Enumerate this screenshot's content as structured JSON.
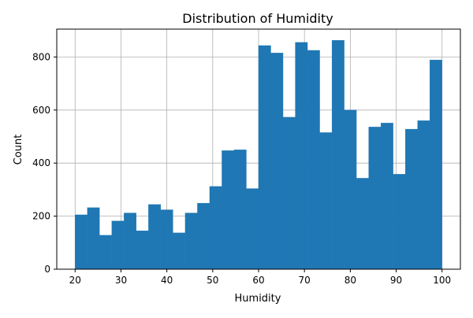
{
  "chart_data": {
    "type": "bar",
    "title": "Distribution of Humidity",
    "xlabel": "Humidity",
    "ylabel": "Count",
    "xlim": [
      16,
      104
    ],
    "ylim": [
      0,
      905
    ],
    "grid": true,
    "bar_color": "#1f77b4",
    "grid_color": "#b0b0b0",
    "x_ticks": [
      20,
      30,
      40,
      50,
      60,
      70,
      80,
      90,
      100
    ],
    "y_ticks": [
      0,
      200,
      400,
      600,
      800
    ],
    "bin_edges": [
      20,
      22.667,
      25.333,
      28,
      30.667,
      33.333,
      36,
      38.667,
      41.333,
      44,
      46.667,
      49.333,
      52,
      54.667,
      57.333,
      60,
      62.667,
      65.333,
      68,
      70.667,
      73.333,
      76,
      78.667,
      81.333,
      84,
      86.667,
      89.333,
      92,
      94.667,
      97.333,
      100
    ],
    "counts": [
      205,
      232,
      128,
      182,
      212,
      145,
      244,
      224,
      137,
      212,
      249,
      312,
      447,
      450,
      304,
      843,
      815,
      573,
      855,
      825,
      515,
      863,
      600,
      343,
      536,
      551,
      358,
      528,
      560,
      789
    ]
  }
}
